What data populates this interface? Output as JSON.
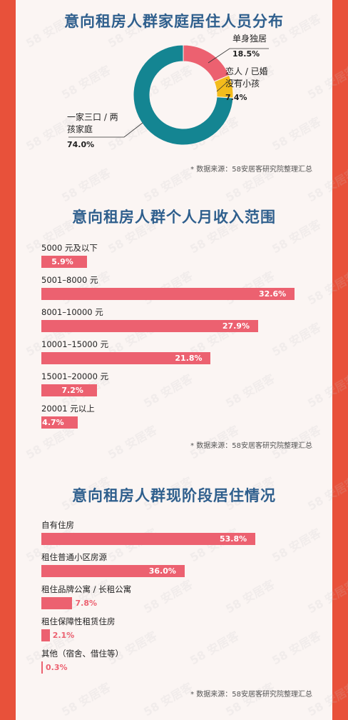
{
  "watermark": "58 安居客",
  "source_text": "* 数据来源：58安居客研究院整理汇总",
  "chart_data": [
    {
      "type": "pie",
      "title": "意向租房人群家庭居住人员分布",
      "categories": [
        "单身独居",
        "恋人 / 已婚没有小孩",
        "一家三口 / 两孩家庭"
      ],
      "values": [
        18.5,
        7.4,
        74.0
      ],
      "labels": [
        "18.5%",
        "7.4%",
        "74.0%"
      ],
      "colors": [
        "#ec6170",
        "#f4bc1c",
        "#148592"
      ]
    },
    {
      "type": "bar",
      "title": "意向租房人群个人月收入范围",
      "categories": [
        "5000 元及以下",
        "5001–8000 元",
        "8001–10000 元",
        "10001–15000 元",
        "15001–20000 元",
        "20001 元以上"
      ],
      "values": [
        5.9,
        32.6,
        27.9,
        21.8,
        7.2,
        4.7
      ],
      "labels": [
        "5.9%",
        "32.6%",
        "27.9%",
        "21.8%",
        "7.2%",
        "4.7%"
      ],
      "color": "#ec6170"
    },
    {
      "type": "bar",
      "title": "意向租房人群现阶段居住情况",
      "categories": [
        "自有住房",
        "租住普通小区房源",
        "租住品牌公寓 / 长租公寓",
        "租住保障性租赁住房",
        "其他（宿舍、借住等）"
      ],
      "values": [
        53.8,
        36.0,
        7.8,
        2.1,
        0.3
      ],
      "labels": [
        "53.8%",
        "36.0%",
        "7.8%",
        "2.1%",
        "0.3%"
      ],
      "color": "#ec6170"
    }
  ]
}
